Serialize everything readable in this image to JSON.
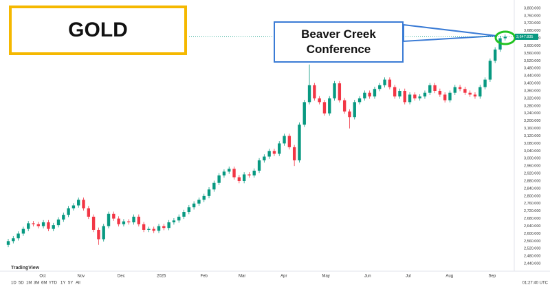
{
  "chart_data": {
    "type": "candlestick",
    "annotations": [
      "GOLD",
      "Beaver Creek Conference"
    ],
    "logo": "TradingView",
    "range_buttons": [
      "1D",
      "5D",
      "1M",
      "3M",
      "6M",
      "YTD",
      "1Y",
      "5Y",
      "All"
    ],
    "clock": "01:27:40 UTC",
    "up_color": "#089981",
    "down_color": "#f23645",
    "last_price": {
      "value": 3647.835,
      "label": "3,647.835"
    },
    "open": [
      2540,
      2560,
      2575,
      2600,
      2625,
      2655,
      2650,
      2640,
      2660,
      2625,
      2645,
      2675,
      2700,
      2735,
      2750,
      2780,
      2735,
      2690,
      2620,
      2570,
      2640,
      2705,
      2680,
      2650,
      2665,
      2660,
      2690,
      2650,
      2620,
      2625,
      2615,
      2640,
      2630,
      2660,
      2670,
      2690,
      2715,
      2740,
      2760,
      2780,
      2800,
      2835,
      2870,
      2910,
      2930,
      2945,
      2900,
      2880,
      2915,
      2910,
      2935,
      2990,
      3010,
      3040,
      3025,
      3080,
      3120,
      3060,
      2990,
      3180,
      3300,
      3390,
      3320,
      3300,
      3240,
      3320,
      3400,
      3310,
      3250,
      3220,
      3300,
      3320,
      3350,
      3330,
      3370,
      3390,
      3420,
      3380,
      3330,
      3360,
      3300,
      3340,
      3320,
      3330,
      3350,
      3390,
      3360,
      3340,
      3310,
      3350,
      3380,
      3370,
      3350,
      3340,
      3330,
      3380,
      3420,
      3520,
      3580,
      3640
    ],
    "high": [
      2572,
      2587,
      2612,
      2637,
      2667,
      2667,
      2662,
      2672,
      2672,
      2657,
      2687,
      2712,
      2747,
      2762,
      2792,
      2792,
      2747,
      2702,
      2632,
      2652,
      2717,
      2717,
      2692,
      2677,
      2677,
      2702,
      2702,
      2662,
      2637,
      2637,
      2652,
      2652,
      2672,
      2682,
      2702,
      2727,
      2752,
      2772,
      2792,
      2812,
      2847,
      2882,
      2922,
      2942,
      2957,
      2957,
      2912,
      2927,
      2927,
      2947,
      3002,
      3022,
      3052,
      3052,
      3092,
      3132,
      3132,
      3072,
      3192,
      3312,
      3500,
      3402,
      3332,
      3312,
      3332,
      3412,
      3412,
      3322,
      3262,
      3312,
      3332,
      3362,
      3362,
      3382,
      3402,
      3432,
      3432,
      3392,
      3372,
      3372,
      3352,
      3352,
      3342,
      3362,
      3402,
      3402,
      3372,
      3352,
      3362,
      3392,
      3392,
      3382,
      3362,
      3352,
      3392,
      3432,
      3532,
      3592,
      3652,
      3660
    ],
    "low": [
      2528,
      2548,
      2563,
      2588,
      2613,
      2638,
      2628,
      2628,
      2613,
      2613,
      2633,
      2663,
      2688,
      2723,
      2738,
      2723,
      2678,
      2608,
      2540,
      2558,
      2628,
      2668,
      2638,
      2638,
      2648,
      2648,
      2638,
      2608,
      2608,
      2603,
      2603,
      2618,
      2618,
      2648,
      2658,
      2678,
      2703,
      2728,
      2748,
      2768,
      2788,
      2823,
      2858,
      2898,
      2918,
      2888,
      2868,
      2868,
      2898,
      2898,
      2923,
      2978,
      2998,
      3013,
      3013,
      3068,
      3048,
      2960,
      2978,
      3168,
      3288,
      3308,
      3288,
      3228,
      3228,
      3308,
      3298,
      3238,
      3160,
      3208,
      3288,
      3308,
      3318,
      3318,
      3358,
      3378,
      3368,
      3318,
      3318,
      3288,
      3288,
      3308,
      3308,
      3318,
      3338,
      3348,
      3328,
      3298,
      3298,
      3338,
      3358,
      3338,
      3328,
      3318,
      3318,
      3368,
      3408,
      3508,
      3568,
      3628
    ],
    "close": [
      2560,
      2575,
      2600,
      2625,
      2655,
      2650,
      2640,
      2660,
      2625,
      2645,
      2675,
      2700,
      2735,
      2750,
      2780,
      2735,
      2690,
      2620,
      2570,
      2640,
      2705,
      2680,
      2650,
      2665,
      2660,
      2690,
      2650,
      2620,
      2625,
      2615,
      2640,
      2630,
      2660,
      2670,
      2690,
      2715,
      2740,
      2760,
      2780,
      2800,
      2835,
      2870,
      2910,
      2930,
      2945,
      2900,
      2880,
      2915,
      2910,
      2935,
      2990,
      3010,
      3040,
      3025,
      3080,
      3120,
      3060,
      2990,
      3180,
      3300,
      3390,
      3320,
      3300,
      3240,
      3320,
      3400,
      3310,
      3250,
      3220,
      3300,
      3320,
      3350,
      3330,
      3370,
      3390,
      3420,
      3380,
      3330,
      3360,
      3300,
      3340,
      3320,
      3330,
      3350,
      3390,
      3360,
      3340,
      3310,
      3350,
      3380,
      3370,
      3350,
      3340,
      3330,
      3380,
      3420,
      3520,
      3580,
      3640,
      3648
    ],
    "xlim": [
      0,
      100.4
    ],
    "xticks": [
      {
        "value": 6.85,
        "label": "Oct"
      },
      {
        "value": 14.5,
        "label": "Nov"
      },
      {
        "value": 22.5,
        "label": "Dec"
      },
      {
        "value": 30.5,
        "label": "2025"
      },
      {
        "value": 39,
        "label": "Feb"
      },
      {
        "value": 46.6,
        "label": "Mar"
      },
      {
        "value": 54.9,
        "label": "Apr"
      },
      {
        "value": 63.3,
        "label": "May"
      },
      {
        "value": 71.6,
        "label": "Jun"
      },
      {
        "value": 79.7,
        "label": "Jul"
      },
      {
        "value": 87.9,
        "label": "Aug"
      },
      {
        "value": 96.4,
        "label": "Sep"
      }
    ],
    "ylim": [
      2400,
      3840
    ],
    "yticks": [
      {
        "value": 3800,
        "label": "3,800.000"
      },
      {
        "value": 3760,
        "label": "3,760.000"
      },
      {
        "value": 3720,
        "label": "3,720.000"
      },
      {
        "value": 3680,
        "label": "3,680.000"
      },
      {
        "value": 3640,
        "label": "3,640.000"
      },
      {
        "value": 3600,
        "label": "3,600.000"
      },
      {
        "value": 3560,
        "label": "3,560.000"
      },
      {
        "value": 3520,
        "label": "3,520.000"
      },
      {
        "value": 3480,
        "label": "3,480.000"
      },
      {
        "value": 3440,
        "label": "3,440.000"
      },
      {
        "value": 3400,
        "label": "3,400.000"
      },
      {
        "value": 3360,
        "label": "3,360.000"
      },
      {
        "value": 3320,
        "label": "3,320.000"
      },
      {
        "value": 3280,
        "label": "3,280.000"
      },
      {
        "value": 3240,
        "label": "3,240.000"
      },
      {
        "value": 3200,
        "label": "3,200.000"
      },
      {
        "value": 3160,
        "label": "3,160.000"
      },
      {
        "value": 3120,
        "label": "3,120.000"
      },
      {
        "value": 3080,
        "label": "3,080.000"
      },
      {
        "value": 3040,
        "label": "3,040.000"
      },
      {
        "value": 3000,
        "label": "3,000.000"
      },
      {
        "value": 2960,
        "label": "2,960.000"
      },
      {
        "value": 2920,
        "label": "2,920.000"
      },
      {
        "value": 2880,
        "label": "2,880.000"
      },
      {
        "value": 2840,
        "label": "2,840.000"
      },
      {
        "value": 2800,
        "label": "2,800.000"
      },
      {
        "value": 2760,
        "label": "2,760.000"
      },
      {
        "value": 2720,
        "label": "2,720.000"
      },
      {
        "value": 2680,
        "label": "2,680.000"
      },
      {
        "value": 2640,
        "label": "2,640.000"
      },
      {
        "value": 2600,
        "label": "2,600.000"
      },
      {
        "value": 2560,
        "label": "2,560.000"
      },
      {
        "value": 2520,
        "label": "2,520.000"
      },
      {
        "value": 2480,
        "label": "2,480.000"
      },
      {
        "value": 2440,
        "label": "2,440.000"
      }
    ],
    "grid": false
  }
}
